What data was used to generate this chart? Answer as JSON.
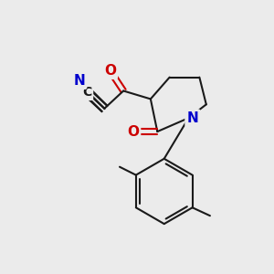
{
  "bg_color": "#ebebeb",
  "bond_color": "#1a1a1a",
  "N_color": "#0000cc",
  "O_color": "#cc0000",
  "bond_width": 1.5,
  "font_size_atom": 10,
  "xlim": [
    0,
    10
  ],
  "ylim": [
    0,
    10
  ]
}
